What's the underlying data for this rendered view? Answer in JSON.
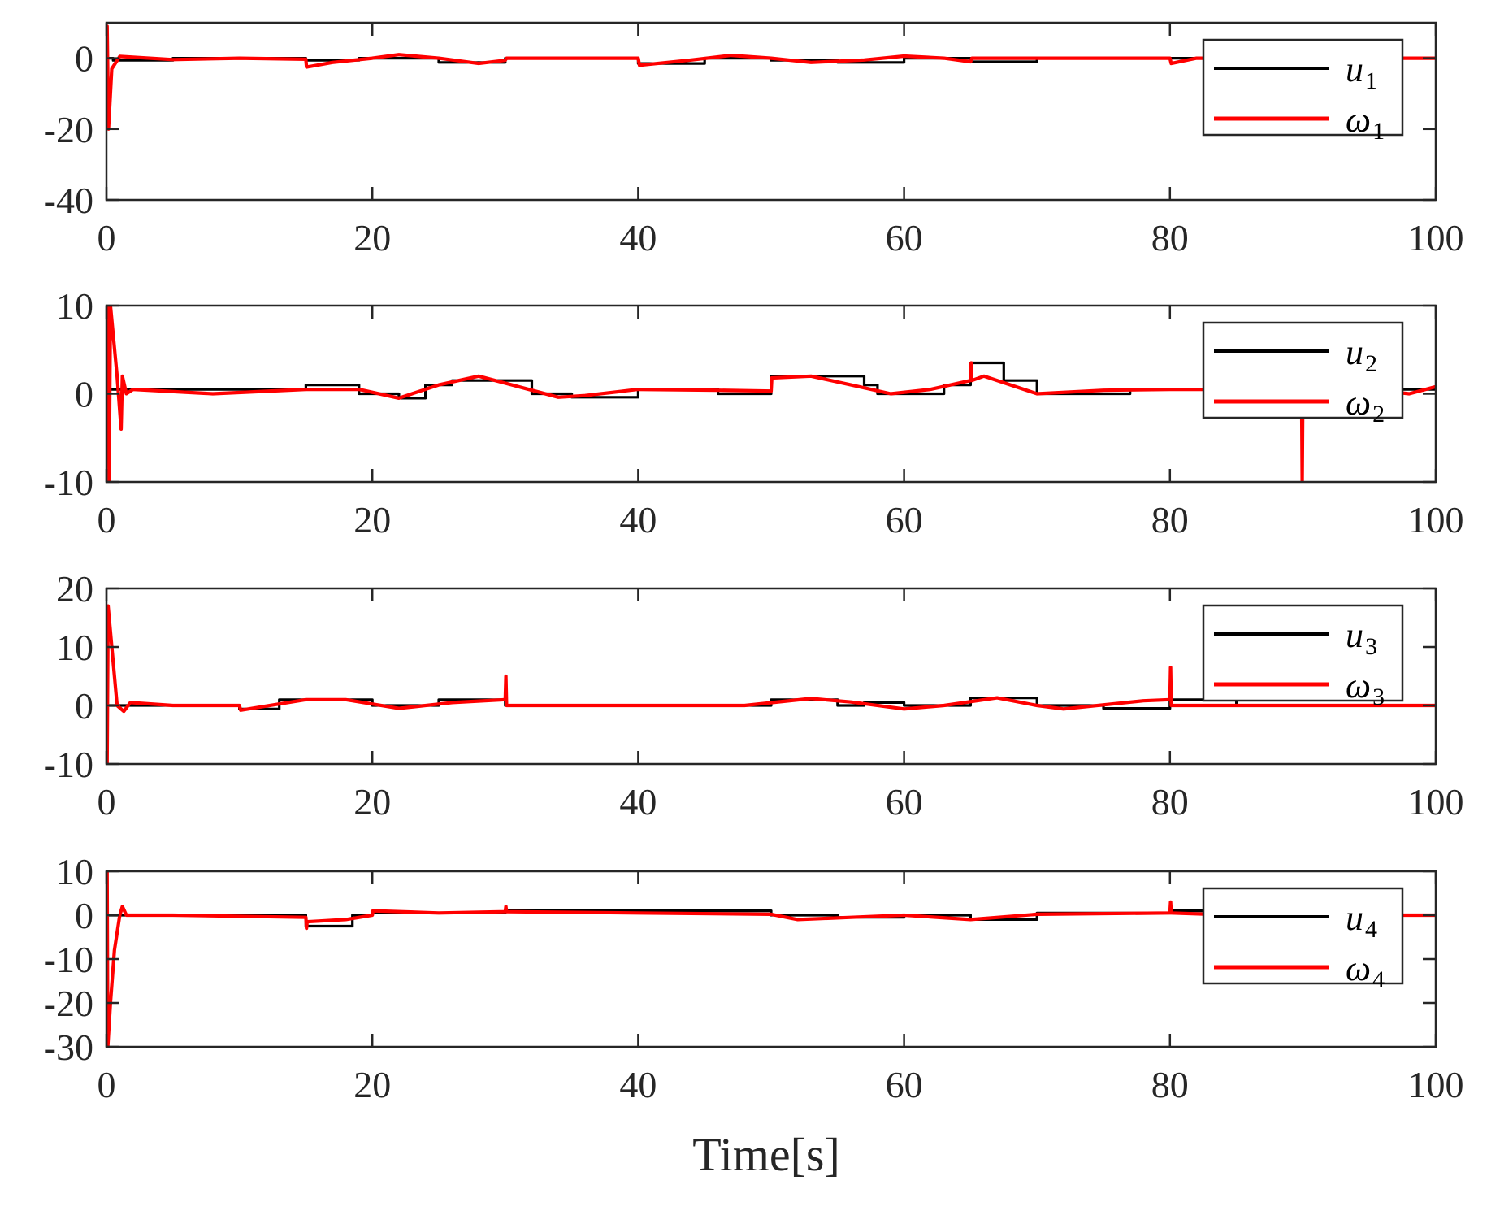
{
  "chart_data": [
    {
      "type": "line",
      "xlim": [
        0,
        100
      ],
      "ylim": [
        -40,
        10
      ],
      "xticks": [
        0,
        20,
        40,
        60,
        80,
        100
      ],
      "yticks": [
        -40,
        -20,
        0
      ],
      "legend_position": "top-right",
      "series": [
        {
          "name": "u",
          "subscript": "1",
          "color": "#000000",
          "steps": [
            [
              0,
              0
            ],
            [
              0.5,
              -0.6
            ],
            [
              5,
              0
            ],
            [
              15,
              -0.6
            ],
            [
              19,
              0
            ],
            [
              25,
              -1.2
            ],
            [
              30,
              0
            ],
            [
              40,
              -1.5
            ],
            [
              45,
              0
            ],
            [
              50,
              -0.6
            ],
            [
              55,
              -1.2
            ],
            [
              60,
              0
            ],
            [
              65,
              -1
            ],
            [
              70,
              0
            ],
            [
              100,
              0
            ]
          ]
        },
        {
          "name": "ω",
          "subscript": "1",
          "color": "#ff0000",
          "points": [
            [
              0,
              0
            ],
            [
              0.05,
              9
            ],
            [
              0.15,
              -20
            ],
            [
              0.4,
              -3
            ],
            [
              1,
              0.5
            ],
            [
              5,
              -0.4
            ],
            [
              10,
              0
            ],
            [
              15,
              -0.3
            ],
            [
              15.05,
              -2.5
            ],
            [
              17,
              -1.2
            ],
            [
              20,
              0
            ],
            [
              22,
              1
            ],
            [
              25,
              0
            ],
            [
              28,
              -1.5
            ],
            [
              30,
              -0.6
            ],
            [
              30.1,
              0
            ],
            [
              35,
              0
            ],
            [
              40,
              0
            ],
            [
              40.1,
              -2
            ],
            [
              44,
              -0.5
            ],
            [
              47,
              0.8
            ],
            [
              50,
              0
            ],
            [
              53,
              -1.2
            ],
            [
              57,
              -0.5
            ],
            [
              60,
              0.6
            ],
            [
              63,
              0
            ],
            [
              65,
              -1
            ],
            [
              65.1,
              0
            ],
            [
              70,
              0
            ],
            [
              75,
              0
            ],
            [
              80,
              0
            ],
            [
              80.1,
              -1.5
            ],
            [
              82,
              0
            ],
            [
              100,
              0
            ]
          ]
        }
      ]
    },
    {
      "type": "line",
      "xlim": [
        0,
        100
      ],
      "ylim": [
        -10,
        10
      ],
      "xticks": [
        0,
        20,
        40,
        60,
        80,
        100
      ],
      "yticks": [
        -10,
        0,
        10
      ],
      "legend_position": "top-right",
      "series": [
        {
          "name": "u",
          "subscript": "2",
          "color": "#000000",
          "steps": [
            [
              0,
              0.5
            ],
            [
              15,
              1
            ],
            [
              19,
              0
            ],
            [
              22,
              -0.5
            ],
            [
              24,
              1
            ],
            [
              26,
              1.5
            ],
            [
              32,
              0
            ],
            [
              35,
              -0.4
            ],
            [
              40,
              0.5
            ],
            [
              46,
              0
            ],
            [
              50,
              2
            ],
            [
              57,
              1
            ],
            [
              58,
              0
            ],
            [
              63,
              1
            ],
            [
              65,
              3.5
            ],
            [
              67.5,
              1.5
            ],
            [
              70,
              0
            ],
            [
              77,
              0.5
            ],
            [
              80,
              0.5
            ],
            [
              100,
              0.5
            ]
          ]
        },
        {
          "name": "ω",
          "subscript": "2",
          "color": "#ff0000",
          "points": [
            [
              0,
              0
            ],
            [
              0.1,
              10
            ],
            [
              0.2,
              -10
            ],
            [
              0.3,
              10
            ],
            [
              0.8,
              2
            ],
            [
              1.1,
              -4
            ],
            [
              1.2,
              2
            ],
            [
              1.5,
              0
            ],
            [
              2,
              0.5
            ],
            [
              8,
              0
            ],
            [
              15,
              0.5
            ],
            [
              19,
              0.5
            ],
            [
              22,
              -0.5
            ],
            [
              25,
              1
            ],
            [
              28,
              2
            ],
            [
              31,
              0.8
            ],
            [
              34,
              -0.4
            ],
            [
              36,
              -0.2
            ],
            [
              40,
              0.5
            ],
            [
              46,
              0.4
            ],
            [
              50,
              0.3
            ],
            [
              50.05,
              1.8
            ],
            [
              53,
              2
            ],
            [
              56,
              1
            ],
            [
              59,
              0
            ],
            [
              62,
              0.5
            ],
            [
              65,
              1.5
            ],
            [
              65.05,
              3.5
            ],
            [
              65.1,
              1.5
            ],
            [
              66,
              2
            ],
            [
              70,
              0
            ],
            [
              75,
              0.4
            ],
            [
              80,
              0.5
            ],
            [
              85,
              0.5
            ],
            [
              89.9,
              0.5
            ],
            [
              89.95,
              -10
            ],
            [
              90,
              0.5
            ],
            [
              95,
              0.5
            ],
            [
              98,
              0
            ],
            [
              100,
              0.8
            ]
          ]
        }
      ]
    },
    {
      "type": "line",
      "xlim": [
        0,
        100
      ],
      "ylim": [
        -10,
        20
      ],
      "xticks": [
        0,
        20,
        40,
        60,
        80,
        100
      ],
      "yticks": [
        -10,
        0,
        10,
        20
      ],
      "legend_position": "top-right",
      "series": [
        {
          "name": "u",
          "subscript": "3",
          "color": "#000000",
          "steps": [
            [
              0,
              0
            ],
            [
              10,
              -0.6
            ],
            [
              13,
              1
            ],
            [
              20,
              0
            ],
            [
              25,
              1
            ],
            [
              30,
              0
            ],
            [
              50,
              1
            ],
            [
              55,
              0
            ],
            [
              57,
              0.5
            ],
            [
              60,
              0
            ],
            [
              65,
              1.3
            ],
            [
              70,
              0
            ],
            [
              75,
              -0.5
            ],
            [
              80,
              1
            ],
            [
              85,
              0
            ],
            [
              100,
              0
            ]
          ]
        },
        {
          "name": "ω",
          "subscript": "3",
          "color": "#ff0000",
          "points": [
            [
              0,
              0
            ],
            [
              0.05,
              -10
            ],
            [
              0.12,
              17
            ],
            [
              0.8,
              0
            ],
            [
              1.3,
              -1
            ],
            [
              1.8,
              0.5
            ],
            [
              5,
              0
            ],
            [
              10,
              0
            ],
            [
              10.1,
              -0.8
            ],
            [
              15,
              1
            ],
            [
              18,
              1
            ],
            [
              22,
              -0.5
            ],
            [
              26,
              0.5
            ],
            [
              30,
              1
            ],
            [
              30.05,
              5
            ],
            [
              30.1,
              0
            ],
            [
              40,
              0
            ],
            [
              48,
              0
            ],
            [
              53,
              1.2
            ],
            [
              56,
              0.6
            ],
            [
              60,
              -0.6
            ],
            [
              63,
              0
            ],
            [
              67,
              1.3
            ],
            [
              70,
              0
            ],
            [
              72,
              -0.6
            ],
            [
              78,
              0.8
            ],
            [
              80,
              1
            ],
            [
              80.05,
              6.5
            ],
            [
              80.1,
              0
            ],
            [
              90,
              0
            ],
            [
              100,
              0
            ]
          ]
        }
      ]
    },
    {
      "type": "line",
      "xlim": [
        0,
        100
      ],
      "ylim": [
        -30,
        10
      ],
      "xticks": [
        0,
        20,
        40,
        60,
        80,
        100
      ],
      "yticks": [
        -30,
        -20,
        -10,
        0,
        10
      ],
      "legend_position": "top-right",
      "series": [
        {
          "name": "u",
          "subscript": "4",
          "color": "#000000",
          "steps": [
            [
              0,
              0
            ],
            [
              15,
              -2.5
            ],
            [
              18.5,
              0
            ],
            [
              20,
              0.5
            ],
            [
              30,
              1
            ],
            [
              50,
              0
            ],
            [
              55,
              -0.5
            ],
            [
              60,
              0
            ],
            [
              65,
              -1
            ],
            [
              70,
              0.5
            ],
            [
              80,
              1
            ],
            [
              85,
              0
            ],
            [
              100,
              0
            ]
          ]
        },
        {
          "name": "ω",
          "subscript": "4",
          "color": "#ff0000",
          "points": [
            [
              0,
              0
            ],
            [
              0.05,
              10
            ],
            [
              0.1,
              -30
            ],
            [
              0.3,
              -20
            ],
            [
              0.6,
              -8
            ],
            [
              1,
              0
            ],
            [
              1.2,
              2
            ],
            [
              1.5,
              0
            ],
            [
              5,
              0
            ],
            [
              15,
              -0.5
            ],
            [
              15.05,
              -3
            ],
            [
              15.1,
              -1.5
            ],
            [
              18,
              -1
            ],
            [
              20,
              0
            ],
            [
              20.05,
              1
            ],
            [
              25,
              0.5
            ],
            [
              30,
              0.8
            ],
            [
              30.05,
              2
            ],
            [
              30.1,
              0.8
            ],
            [
              40,
              0.5
            ],
            [
              50,
              0.2
            ],
            [
              52,
              -1
            ],
            [
              56,
              -0.5
            ],
            [
              60,
              0
            ],
            [
              65,
              -1
            ],
            [
              70,
              0.2
            ],
            [
              80,
              0.5
            ],
            [
              80.05,
              3
            ],
            [
              80.1,
              0.5
            ],
            [
              85,
              0
            ],
            [
              100,
              0
            ]
          ]
        }
      ]
    }
  ],
  "xlabel": "Time[s]"
}
